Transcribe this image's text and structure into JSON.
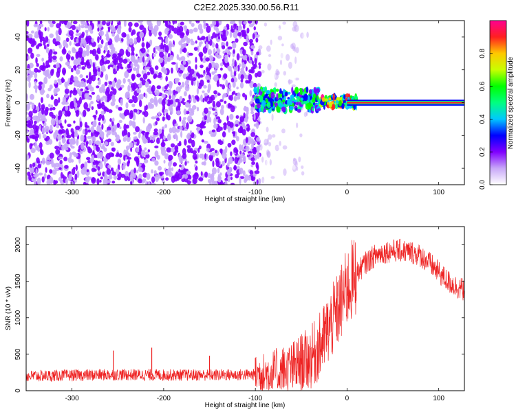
{
  "title": "C2E2.2025.330.00.56.R11",
  "chart_data": [
    {
      "type": "heatmap",
      "xlabel": "Height of straight line (km)",
      "ylabel": "Frequency (Hz)",
      "xlim": [
        -350,
        128
      ],
      "ylim": [
        -50,
        50
      ],
      "xticks": [
        -300,
        -200,
        -100,
        0,
        100
      ],
      "yticks": [
        -40,
        -20,
        0,
        20,
        40
      ],
      "colorbar": {
        "label": "Normalized spectral amplitude",
        "range": [
          0,
          1
        ],
        "ticks": [
          "0.0",
          "0.2",
          "0.4",
          "0.6",
          "0.8"
        ],
        "tick_values": [
          0.0,
          0.2,
          0.4,
          0.6,
          0.8
        ],
        "colors": [
          "#ffffff",
          "#c8a8f8",
          "#8000ff",
          "#0000ff",
          "#00c8ff",
          "#00ff80",
          "#00ff00",
          "#c8ff00",
          "#ffc800",
          "#ff2020",
          "#ff0090"
        ]
      },
      "regions": [
        {
          "x": [
            -350,
            -95
          ],
          "freq": [
            -50,
            50
          ],
          "amplitude": 0.15
        },
        {
          "x": [
            -95,
            -40
          ],
          "freq": [
            -50,
            50
          ],
          "amplitude": 0.05
        },
        {
          "x": [
            -100,
            -30
          ],
          "freq": [
            -5,
            8
          ],
          "amplitude": 0.4
        },
        {
          "x": [
            -30,
            10
          ],
          "freq": [
            -3,
            4
          ],
          "amplitude": 0.6
        },
        {
          "x": [
            0,
            128
          ],
          "freq": [
            -1,
            1
          ],
          "amplitude": 0.85
        }
      ]
    },
    {
      "type": "line",
      "xlabel": "Height of straight line (km)",
      "ylabel": "SNR (10 * v/v)",
      "xlim": [
        -350,
        128
      ],
      "ylim": [
        0,
        2250
      ],
      "xticks": [
        -300,
        -200,
        -100,
        0,
        100
      ],
      "yticks": [
        0,
        500,
        1000,
        1500,
        2000
      ],
      "series": [
        {
          "color": "#ee2222",
          "x": [
            -350,
            -300,
            -250,
            -200,
            -150,
            -100,
            -80,
            -60,
            -50,
            -40,
            -30,
            -20,
            -10,
            0,
            10,
            20,
            30,
            40,
            50,
            60,
            70,
            80,
            90,
            100,
            110,
            120,
            128
          ],
          "y": [
            200,
            210,
            220,
            215,
            215,
            220,
            250,
            300,
            380,
            450,
            600,
            850,
            1100,
            1400,
            1600,
            1750,
            1850,
            1900,
            1920,
            1920,
            1900,
            1850,
            1750,
            1620,
            1500,
            1420,
            1380
          ]
        }
      ],
      "spikes": [
        {
          "x": -255,
          "y": 550
        },
        {
          "x": -213,
          "y": 590
        },
        {
          "x": -150,
          "y": 480
        },
        {
          "x": -100,
          "y": 450
        }
      ]
    }
  ]
}
